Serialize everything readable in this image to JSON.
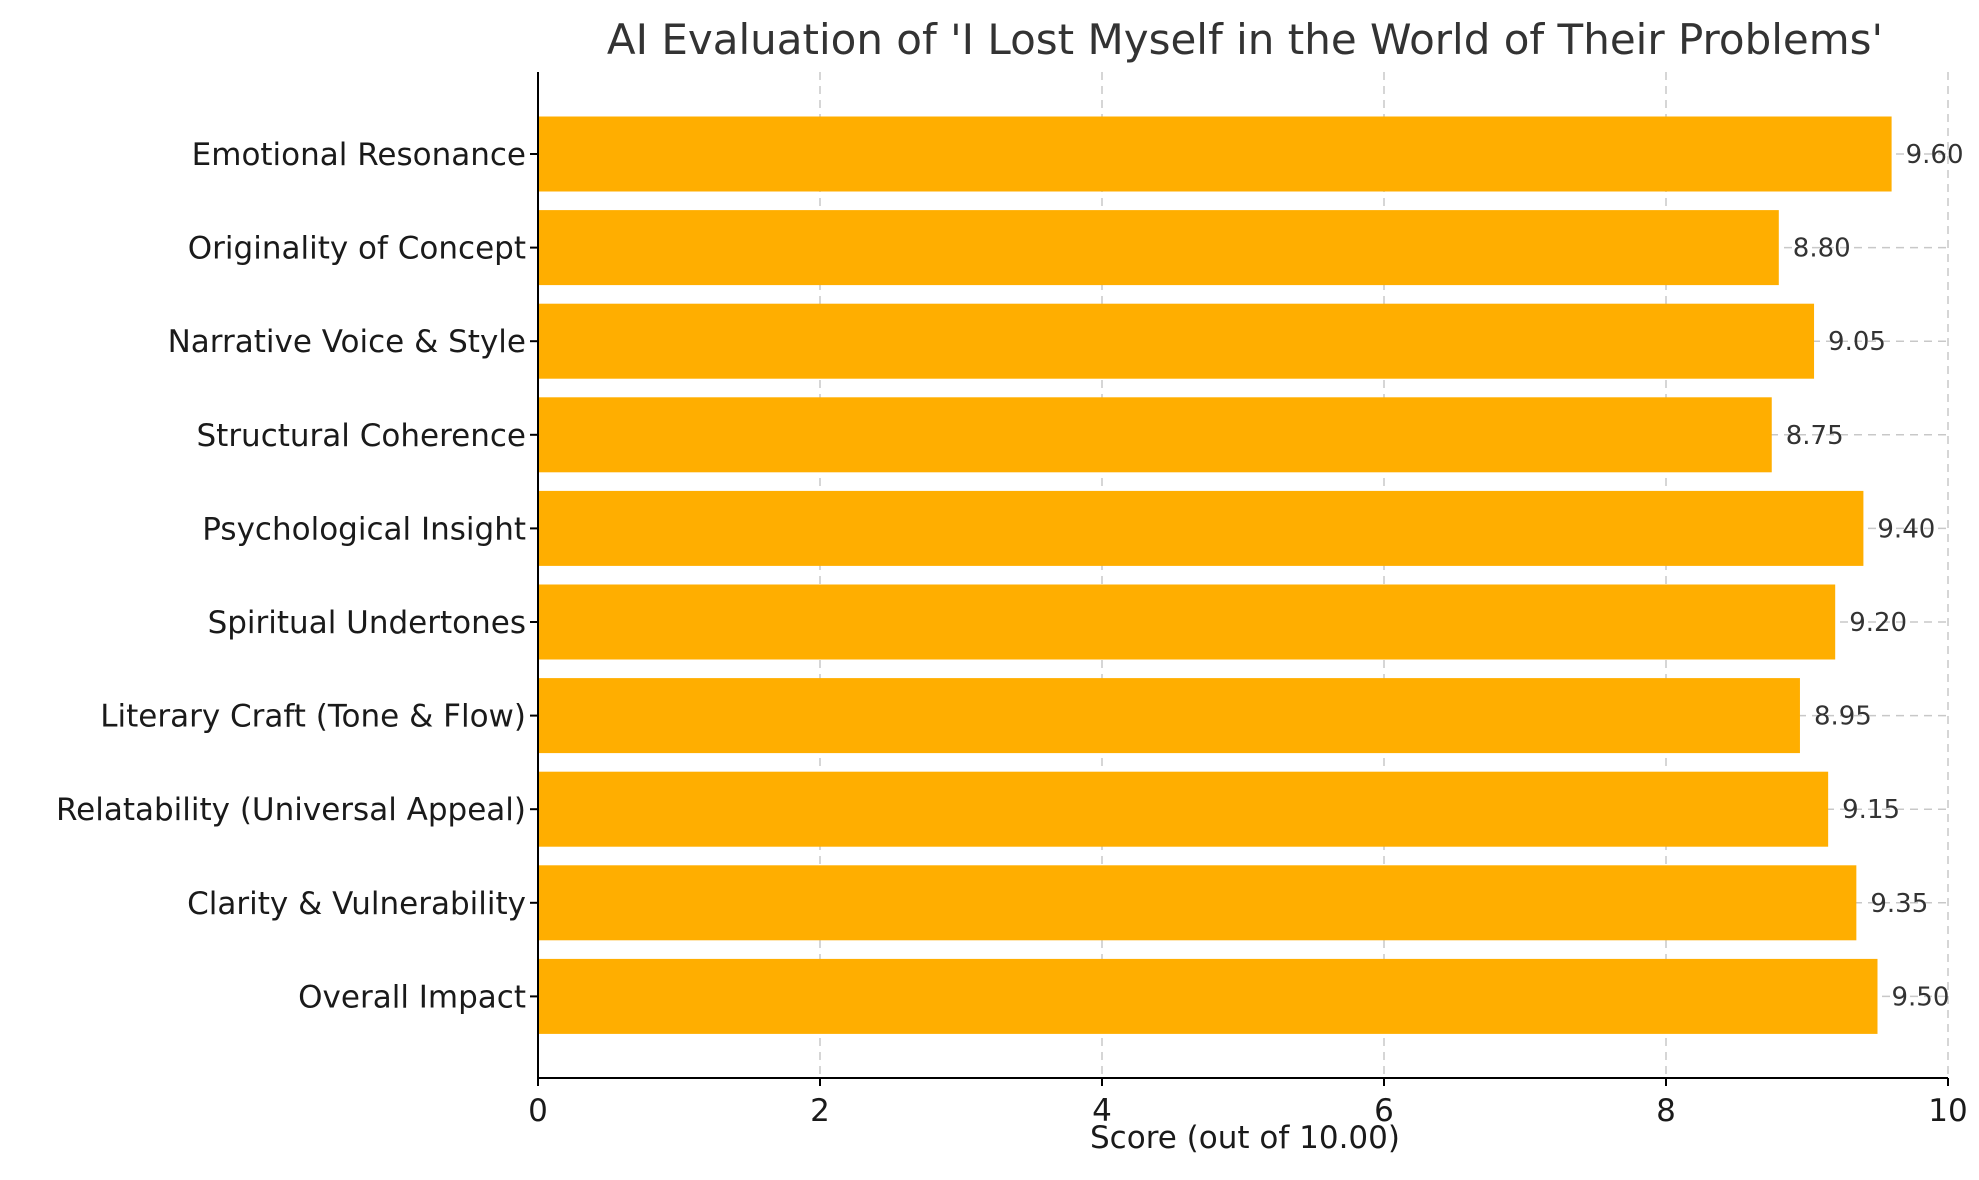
{
  "chart_data": {
    "type": "bar",
    "orientation": "horizontal",
    "title": "AI Evaluation of 'I Lost Myself in the World of Their Problems'",
    "xlabel": "Score (out of 10.00)",
    "ylabel": "",
    "xlim": [
      0,
      10
    ],
    "xticks": [
      0,
      2,
      4,
      6,
      8,
      10
    ],
    "grid": true,
    "bar_color": "#FFAE00",
    "categories": [
      "Emotional Resonance",
      "Originality of Concept",
      "Narrative Voice & Style",
      "Structural Coherence",
      "Psychological Insight",
      "Spiritual Undertones",
      "Literary Craft (Tone & Flow)",
      "Relatability (Universal Appeal)",
      "Clarity & Vulnerability",
      "Overall Impact"
    ],
    "values": [
      9.6,
      8.8,
      9.05,
      8.75,
      9.4,
      9.2,
      8.95,
      9.15,
      9.35,
      9.5
    ],
    "value_labels": [
      "9.60",
      "8.80",
      "9.05",
      "8.75",
      "9.40",
      "9.20",
      "8.95",
      "9.15",
      "9.35",
      "9.50"
    ]
  }
}
